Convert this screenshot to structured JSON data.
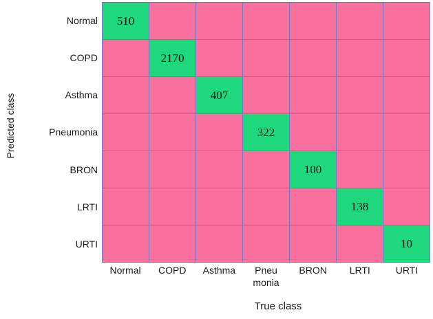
{
  "chart_data": {
    "type": "heatmap",
    "subtype": "confusion-matrix",
    "title": "",
    "xlabel": "True class",
    "ylabel": "Predicted class",
    "x_tick_labels": [
      "Normal",
      "COPD",
      "Asthma",
      "Pneu monia",
      "BRON",
      "LRTI",
      "URTI"
    ],
    "y_tick_labels": [
      "Normal",
      "COPD",
      "Asthma",
      "Pneumonia",
      "BRON",
      "LRTI",
      "URTI"
    ],
    "diagonal_values": [
      510,
      2170,
      407,
      322,
      100,
      138,
      10
    ],
    "matrix": [
      [
        510,
        null,
        null,
        null,
        null,
        null,
        null
      ],
      [
        null,
        2170,
        null,
        null,
        null,
        null,
        null
      ],
      [
        null,
        null,
        407,
        null,
        null,
        null,
        null
      ],
      [
        null,
        null,
        null,
        322,
        null,
        null,
        null
      ],
      [
        null,
        null,
        null,
        null,
        100,
        null,
        null
      ],
      [
        null,
        null,
        null,
        null,
        null,
        138,
        null
      ],
      [
        null,
        null,
        null,
        null,
        null,
        null,
        10
      ]
    ],
    "rows": 7,
    "cols": 7,
    "grid": true,
    "legend": false,
    "colors": {
      "off_diagonal_cell": "#f8709e",
      "diagonal_cell": "#1fd87d",
      "grid_line": "#6f7bc3",
      "text": "#1a1a1a",
      "background": "#ffffff"
    }
  }
}
